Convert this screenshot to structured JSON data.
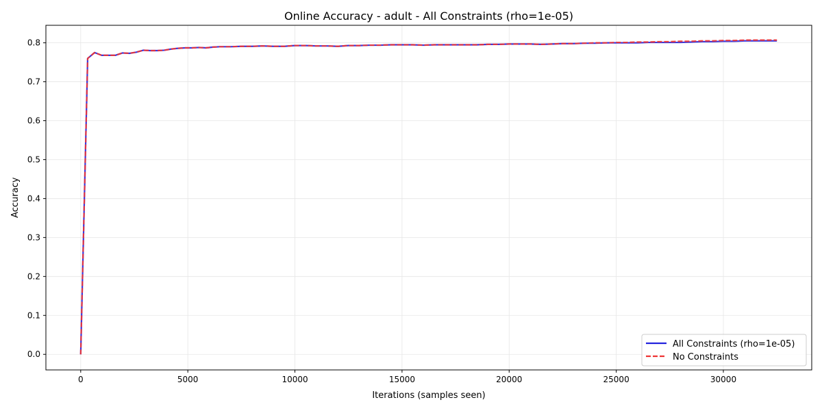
{
  "chart_data": {
    "type": "line",
    "title": "Online Accuracy - adult - All Constraints (rho=1e-05)",
    "xlabel": "Iterations (samples seen)",
    "ylabel": "Accuracy",
    "xlim": [
      -1625,
      34125
    ],
    "ylim": [
      -0.04,
      0.845
    ],
    "xticks": [
      0,
      5000,
      10000,
      15000,
      20000,
      25000,
      30000
    ],
    "yticks": [
      0.0,
      0.1,
      0.2,
      0.3,
      0.4,
      0.5,
      0.6,
      0.7,
      0.8
    ],
    "grid": true,
    "legend_position": "lower right",
    "series": [
      {
        "name": "All Constraints (rho=1e-05)",
        "color": "#2222dd",
        "style": "solid",
        "x": [
          0,
          325,
          650,
          975,
          1300,
          1625,
          1950,
          2275,
          2600,
          2925,
          3250,
          3575,
          3900,
          4225,
          4550,
          4875,
          5200,
          5525,
          5850,
          6175,
          6500,
          7000,
          7500,
          8000,
          8500,
          9000,
          9500,
          10000,
          10500,
          11000,
          11500,
          12000,
          12500,
          13000,
          13500,
          14000,
          14500,
          15000,
          15500,
          16000,
          16500,
          17000,
          17500,
          18000,
          18500,
          19000,
          19500,
          20000,
          20500,
          21000,
          21500,
          22000,
          22500,
          23000,
          23500,
          24000,
          24500,
          25000,
          25500,
          26000,
          26500,
          27000,
          27500,
          28000,
          28500,
          29000,
          29500,
          30000,
          30500,
          31000,
          31500,
          32000,
          32500
        ],
        "y": [
          0.0,
          0.76,
          0.775,
          0.768,
          0.768,
          0.768,
          0.774,
          0.773,
          0.776,
          0.781,
          0.78,
          0.78,
          0.781,
          0.784,
          0.786,
          0.787,
          0.787,
          0.788,
          0.787,
          0.789,
          0.79,
          0.79,
          0.791,
          0.791,
          0.792,
          0.791,
          0.791,
          0.793,
          0.793,
          0.792,
          0.792,
          0.791,
          0.793,
          0.793,
          0.794,
          0.794,
          0.795,
          0.795,
          0.795,
          0.794,
          0.795,
          0.795,
          0.795,
          0.795,
          0.795,
          0.796,
          0.796,
          0.797,
          0.797,
          0.797,
          0.796,
          0.797,
          0.798,
          0.798,
          0.799,
          0.799,
          0.8,
          0.8,
          0.8,
          0.8,
          0.801,
          0.801,
          0.801,
          0.801,
          0.802,
          0.803,
          0.803,
          0.804,
          0.804,
          0.805,
          0.805,
          0.805,
          0.805
        ]
      },
      {
        "name": "No Constraints",
        "color": "#ee3333",
        "style": "dashed",
        "x": [
          0,
          325,
          650,
          975,
          1300,
          1625,
          1950,
          2275,
          2600,
          2925,
          3250,
          3575,
          3900,
          4225,
          4550,
          4875,
          5200,
          5525,
          5850,
          6175,
          6500,
          7000,
          7500,
          8000,
          8500,
          9000,
          9500,
          10000,
          10500,
          11000,
          11500,
          12000,
          12500,
          13000,
          13500,
          14000,
          14500,
          15000,
          15500,
          16000,
          16500,
          17000,
          17500,
          18000,
          18500,
          19000,
          19500,
          20000,
          20500,
          21000,
          21500,
          22000,
          22500,
          23000,
          23500,
          24000,
          24500,
          25000,
          25500,
          26000,
          26500,
          27000,
          27500,
          28000,
          28500,
          29000,
          29500,
          30000,
          30500,
          31000,
          31500,
          32000,
          32500
        ],
        "y": [
          0.0,
          0.76,
          0.775,
          0.768,
          0.768,
          0.768,
          0.774,
          0.773,
          0.776,
          0.781,
          0.78,
          0.78,
          0.781,
          0.784,
          0.786,
          0.787,
          0.787,
          0.788,
          0.787,
          0.789,
          0.79,
          0.79,
          0.791,
          0.791,
          0.792,
          0.791,
          0.791,
          0.793,
          0.793,
          0.792,
          0.792,
          0.791,
          0.793,
          0.793,
          0.794,
          0.794,
          0.795,
          0.795,
          0.795,
          0.794,
          0.795,
          0.795,
          0.795,
          0.795,
          0.795,
          0.796,
          0.796,
          0.797,
          0.797,
          0.797,
          0.796,
          0.797,
          0.798,
          0.798,
          0.799,
          0.8,
          0.8,
          0.801,
          0.801,
          0.802,
          0.802,
          0.803,
          0.803,
          0.804,
          0.804,
          0.805,
          0.805,
          0.806,
          0.806,
          0.807,
          0.807,
          0.807,
          0.807
        ]
      }
    ]
  }
}
